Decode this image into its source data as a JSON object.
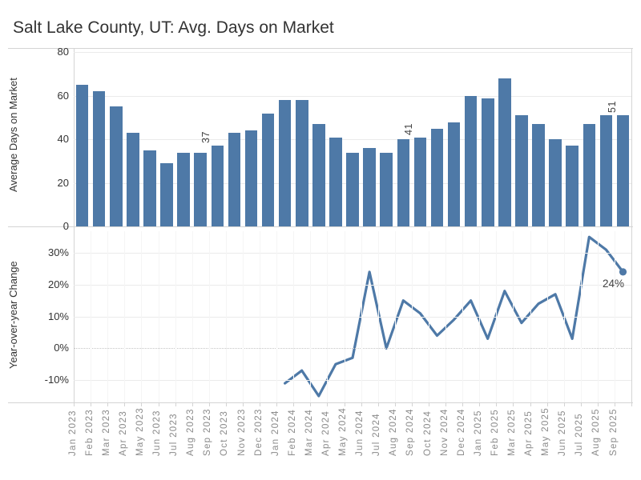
{
  "title": "Salt Lake County, UT: Avg. Days on Market",
  "colors": {
    "accent": "#4e79a7",
    "title": "#333333",
    "axis": "#333333",
    "month": "#8b8b8b",
    "grid": "#ebebeb",
    "frame": "#d4d4d4",
    "zero": "#c4c4c4",
    "ann": "#424242"
  },
  "chart_data": [
    {
      "type": "bar",
      "ylabel": "Average Days on Market",
      "yticks": [
        0,
        20,
        40,
        60,
        80
      ],
      "ylim": [
        0,
        82
      ],
      "categories": [
        "Jan 2023",
        "Feb 2023",
        "Mar 2023",
        "Apr 2023",
        "May 2023",
        "Jun 2023",
        "Jul 2023",
        "Aug 2023",
        "Sep 2023",
        "Oct 2023",
        "Nov 2023",
        "Dec 2023",
        "Jan 2024",
        "Feb 2024",
        "Mar 2024",
        "Apr 2024",
        "May 2024",
        "Jun 2024",
        "Jul 2024",
        "Aug 2024",
        "Sep 2024",
        "Oct 2024",
        "Nov 2024",
        "Dec 2024",
        "Jan 2025",
        "Feb 2025",
        "Mar 2025",
        "Apr 2025",
        "May 2025",
        "Jun 2025",
        "Jul 2025",
        "Aug 2025",
        "Sep 2025"
      ],
      "values": [
        65,
        62,
        55,
        43,
        35,
        29,
        34,
        34,
        37,
        43,
        44,
        52,
        58,
        58,
        47,
        41,
        34,
        36,
        34,
        40,
        41,
        45,
        48,
        60,
        59,
        68,
        51,
        47,
        40,
        37,
        47,
        51,
        51
      ],
      "point_labels": [
        {
          "index": 8,
          "text": "37"
        },
        {
          "index": 20,
          "text": "41"
        },
        {
          "index": 32,
          "text": "51"
        }
      ],
      "grid": "horizontal",
      "legend": "none"
    },
    {
      "type": "line",
      "ylabel": "Year-over-year Change",
      "yticks": [
        -10,
        0,
        10,
        20,
        30
      ],
      "ytick_suffix": "%",
      "ylim": [
        -17,
        36.8
      ],
      "start_index": 12,
      "values": [
        -11,
        -7,
        -15,
        -5,
        -3,
        24,
        0,
        15,
        11,
        4,
        9,
        15,
        3,
        18,
        8,
        14,
        17,
        3,
        35,
        31,
        24
      ],
      "end_point_label": "24%",
      "zero_reference_line": true,
      "grid": "horizontal",
      "legend": "none"
    }
  ]
}
